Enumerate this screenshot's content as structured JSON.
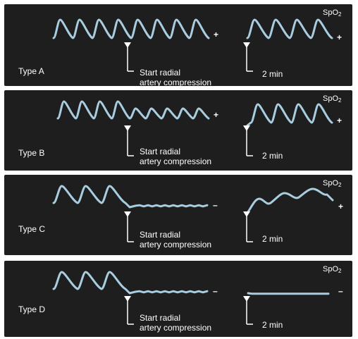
{
  "spo2": {
    "base": "SpO",
    "sub": "2"
  },
  "start_line1": "Start radial",
  "start_line2": "artery compression",
  "two_min": "2 min",
  "colors": {
    "wave": "#a9cde0",
    "panel": "#1e1e1e",
    "text": "#ffffff"
  },
  "panels": [
    {
      "type_label": "Type A",
      "compression_sign": "+",
      "after_sign": "+",
      "compression_response": "full-pulsation",
      "recovery_response": "full-pulsation"
    },
    {
      "type_label": "Type B",
      "compression_sign": "+",
      "after_sign": "+",
      "compression_response": "dampened-pulsation",
      "recovery_response": "full-pulsation"
    },
    {
      "type_label": "Type C",
      "compression_sign": "–",
      "after_sign": "+",
      "compression_response": "flat",
      "recovery_response": "partial-return"
    },
    {
      "type_label": "Type D",
      "compression_sign": "–",
      "after_sign": "–",
      "compression_response": "flat",
      "recovery_response": "flat"
    }
  ]
}
